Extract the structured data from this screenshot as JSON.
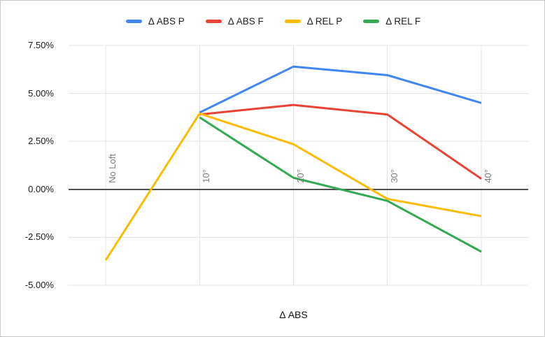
{
  "chart_data": {
    "type": "line",
    "title": "",
    "xlabel": "Δ ABS",
    "ylabel": "",
    "legend_position": "top",
    "grid": true,
    "categories": [
      "No Loft",
      "10°",
      "20°",
      "30°",
      "40°"
    ],
    "series": [
      {
        "name": "Δ ABS P",
        "color": "#4285F4",
        "values": [
          null,
          4.0,
          6.4,
          5.95,
          4.5
        ]
      },
      {
        "name": "Δ ABS F",
        "color": "#EA4335",
        "values": [
          null,
          3.9,
          4.4,
          3.9,
          0.55
        ]
      },
      {
        "name": "Δ REL P",
        "color": "#FBBC04",
        "values": [
          -3.7,
          3.95,
          2.35,
          -0.5,
          -1.4
        ]
      },
      {
        "name": "Δ REL F",
        "color": "#34A853",
        "values": [
          null,
          3.75,
          0.6,
          -0.6,
          -3.25
        ]
      }
    ],
    "y_ticks": [
      {
        "label": "7.50%",
        "value": 7.5
      },
      {
        "label": "5.00%",
        "value": 5.0
      },
      {
        "label": "2.50%",
        "value": 2.5
      },
      {
        "label": "0.00%",
        "value": 0.0
      },
      {
        "label": "-2.50%",
        "value": -2.5
      },
      {
        "label": "-5.00%",
        "value": -5.0
      }
    ],
    "ylim": [
      -5.0,
      7.5
    ],
    "baseline_value": 0,
    "colors": {
      "gridline": "#e4e4e4",
      "baseline": "#4f4f4f",
      "category_label": "#7d7d7d",
      "tick_label": "#1a1a1a"
    }
  }
}
